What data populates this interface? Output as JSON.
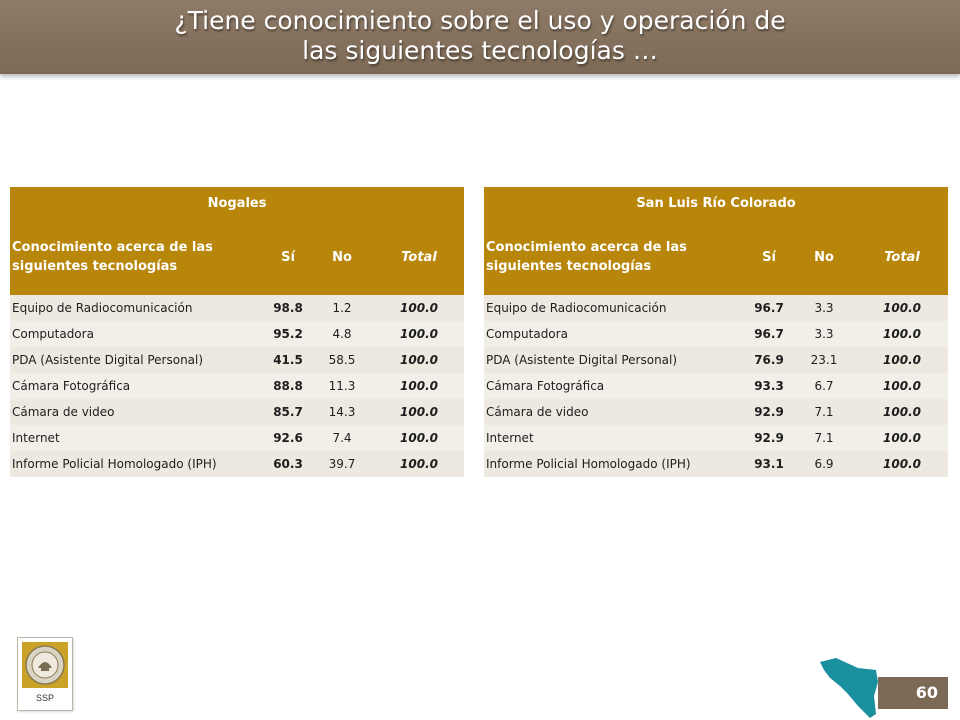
{
  "title": {
    "line1": "¿Tiene conocimiento sobre el uso y operación de",
    "line2": "las siguientes tecnologías …"
  },
  "tables": [
    {
      "city": "Nogales",
      "headers": {
        "description": "Conocimiento acerca de las siguientes tecnologías",
        "si": "Sí",
        "no": "No",
        "total": "Total"
      },
      "rows": [
        {
          "name": "Equipo de Radiocomunicación",
          "si": "98.8",
          "no": "1.2",
          "total": "100.0"
        },
        {
          "name": "Computadora",
          "si": "95.2",
          "no": "4.8",
          "total": "100.0"
        },
        {
          "name": "PDA (Asistente Digital Personal)",
          "si": "41.5",
          "no": "58.5",
          "total": "100.0"
        },
        {
          "name": "Cámara Fotográfica",
          "si": "88.8",
          "no": "11.3",
          "total": "100.0"
        },
        {
          "name": "Cámara de video",
          "si": "85.7",
          "no": "14.3",
          "total": "100.0"
        },
        {
          "name": "Internet",
          "si": "92.6",
          "no": "7.4",
          "total": "100.0"
        },
        {
          "name": "Informe Policial Homologado (IPH)",
          "si": "60.3",
          "no": "39.7",
          "total": "100.0"
        }
      ]
    },
    {
      "city": "San Luis Río Colorado",
      "headers": {
        "description": "Conocimiento acerca de las siguientes tecnologías",
        "si": "Sí",
        "no": "No",
        "total": "Total"
      },
      "rows": [
        {
          "name": "Equipo de Radiocomunicación",
          "si": "96.7",
          "no": "3.3",
          "total": "100.0"
        },
        {
          "name": "Computadora",
          "si": "96.7",
          "no": "3.3",
          "total": "100.0"
        },
        {
          "name": "PDA (Asistente Digital Personal)",
          "si": "76.9",
          "no": "23.1",
          "total": "100.0"
        },
        {
          "name": "Cámara Fotográfica",
          "si": "93.3",
          "no": "6.7",
          "total": "100.0"
        },
        {
          "name": "Cámara de video",
          "si": "92.9",
          "no": "7.1",
          "total": "100.0"
        },
        {
          "name": "Internet",
          "si": "92.9",
          "no": "7.1",
          "total": "100.0"
        },
        {
          "name": "Informe Policial Homologado (IPH)",
          "si": "93.1",
          "no": "6.9",
          "total": "100.0"
        }
      ]
    }
  ],
  "logo": {
    "label": "SSP",
    "icon": "ssp-seal-icon"
  },
  "map": {
    "icon": "sonora-map-icon",
    "color": "#1a8f9e"
  },
  "footer": {
    "page_number": "60"
  },
  "colors": {
    "title_bar": "#7d6a56",
    "table_header": "#b8860b",
    "row_background": "#ede9e0",
    "page_number_box": "#7d6a56"
  }
}
